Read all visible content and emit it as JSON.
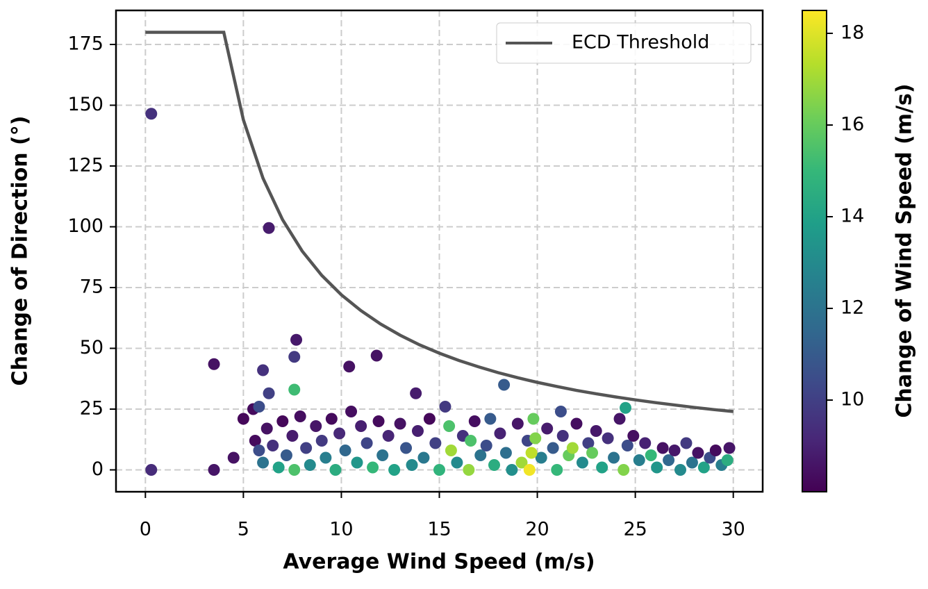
{
  "chart_data": {
    "type": "scatter",
    "xlabel": "Average Wind Speed (m/s)",
    "ylabel": "Change of Direction (°)",
    "xlim": [
      -1.5,
      31.5
    ],
    "xticks": [
      0,
      5,
      10,
      15,
      20,
      25,
      30
    ],
    "ylim": [
      -9,
      189
    ],
    "yticks": [
      0,
      25,
      50,
      75,
      100,
      125,
      150,
      175
    ],
    "grid": true,
    "legend": "upper right",
    "colorbar": {
      "label": "Change of Wind Speed (m/s)",
      "colormap": "viridis",
      "clim": [
        8.0,
        18.5
      ],
      "ticks": [
        10,
        12,
        14,
        16,
        18
      ]
    },
    "series": [
      {
        "type": "scatter",
        "x": [
          0.3,
          6.3,
          0.3,
          3.5,
          3.5,
          6.0,
          7.6,
          7.7,
          6.3,
          10.4,
          11.8,
          13.8,
          18.3,
          21.2,
          4.5,
          5.0,
          5.5,
          5.8,
          5.6,
          5.8,
          6.0,
          6.2,
          6.5,
          6.8,
          7.0,
          7.2,
          7.5,
          7.9,
          8.2,
          8.4,
          8.7,
          9.0,
          9.2,
          9.5,
          9.7,
          9.9,
          10.2,
          10.5,
          10.8,
          11.0,
          11.3,
          11.6,
          11.9,
          12.1,
          12.4,
          12.7,
          13.0,
          13.3,
          13.6,
          13.9,
          14.2,
          14.5,
          14.8,
          15.0,
          15.3,
          15.9,
          16.2,
          16.8,
          17.1,
          17.4,
          17.6,
          17.8,
          18.1,
          18.4,
          18.7,
          19.0,
          19.5,
          20.2,
          20.5,
          20.8,
          21.0,
          21.3,
          22.0,
          22.3,
          22.6,
          23.0,
          23.3,
          23.6,
          23.9,
          24.2,
          24.6,
          24.9,
          25.2,
          25.5,
          26.1,
          26.4,
          26.7,
          27.0,
          27.3,
          27.6,
          27.9,
          28.2,
          28.5,
          28.8,
          29.1,
          29.4,
          29.7,
          29.8,
          7.6,
          7.6,
          15.5,
          15.6,
          16.5,
          16.6,
          19.2,
          19.7,
          19.8,
          19.9,
          21.6,
          21.8,
          22.8,
          24.4,
          25.8,
          24.5,
          19.6
        ],
        "values": [
          146.5,
          99.5,
          0,
          43.5,
          0,
          41,
          46.5,
          53.5,
          31.5,
          42.5,
          47,
          31.5,
          35,
          24,
          5,
          21,
          25,
          26,
          12,
          8,
          3,
          17,
          10,
          1,
          20,
          6,
          14,
          22,
          9,
          2,
          18,
          12,
          5,
          21,
          0,
          15,
          8,
          24,
          3,
          18,
          11,
          1,
          20,
          6,
          14,
          0,
          19,
          9,
          2,
          16,
          5,
          21,
          11,
          0,
          26,
          3,
          14,
          20,
          6,
          10,
          21,
          2,
          15,
          7,
          0,
          19,
          12,
          5,
          17,
          9,
          0,
          14,
          19,
          3,
          11,
          16,
          1,
          13,
          5,
          21,
          10,
          14,
          4,
          11,
          1,
          9,
          4,
          8,
          0,
          11,
          3,
          7,
          1,
          5,
          8,
          2,
          4,
          9,
          33,
          0,
          18,
          8,
          0,
          12,
          3,
          7,
          21,
          13,
          6,
          9,
          7,
          0,
          6,
          25.5,
          0
        ],
        "c": [
          9.5,
          8.8,
          9.3,
          8.5,
          8.6,
          9.5,
          9.8,
          8.7,
          10,
          8.5,
          8.5,
          8.8,
          11,
          10.5,
          8.5,
          8.2,
          8.3,
          10.5,
          8.3,
          10.5,
          12,
          8.5,
          9.5,
          14,
          8.2,
          11,
          8.8,
          8.4,
          10,
          13,
          8.6,
          9.8,
          12.5,
          8.3,
          14.5,
          9.2,
          11.5,
          8.4,
          13.5,
          8.9,
          10.2,
          15,
          8.3,
          12,
          9.1,
          14,
          8.5,
          10.8,
          13,
          8.9,
          12.2,
          8.2,
          10,
          14.8,
          9.8,
          13,
          9.5,
          8.4,
          12,
          10.5,
          11,
          14.5,
          9,
          11.8,
          13.2,
          8.6,
          10.2,
          12.5,
          8.8,
          11,
          15,
          9.5,
          8.4,
          13,
          10,
          8.7,
          14,
          9.5,
          12,
          8.6,
          10.5,
          8.4,
          12.5,
          9,
          13.5,
          8.5,
          11.5,
          8.7,
          13,
          9.8,
          12,
          8.5,
          14,
          10.5,
          8.3,
          12.5,
          14.5,
          8.6,
          15.2,
          15.5,
          15.5,
          17,
          16.8,
          15.5,
          17,
          17.5,
          16,
          16.5,
          16,
          17,
          16,
          16.5,
          15,
          14,
          18.3
        ]
      },
      {
        "type": "line",
        "name": "ECD Threshold",
        "color": "#555555",
        "x": [
          0,
          4,
          5,
          6,
          7,
          8,
          9,
          10,
          11,
          12,
          13,
          14,
          15,
          16,
          17,
          18,
          19,
          20,
          21,
          22,
          23,
          24,
          25,
          26,
          27,
          28,
          29,
          30
        ],
        "values": [
          180,
          180,
          144,
          120,
          102.9,
          90,
          80,
          72,
          65.5,
          60,
          55.4,
          51.4,
          48,
          45,
          42.4,
          40,
          37.9,
          36,
          34.3,
          32.7,
          31.3,
          30,
          28.8,
          27.7,
          26.7,
          25.7,
          24.8,
          24
        ]
      }
    ]
  }
}
